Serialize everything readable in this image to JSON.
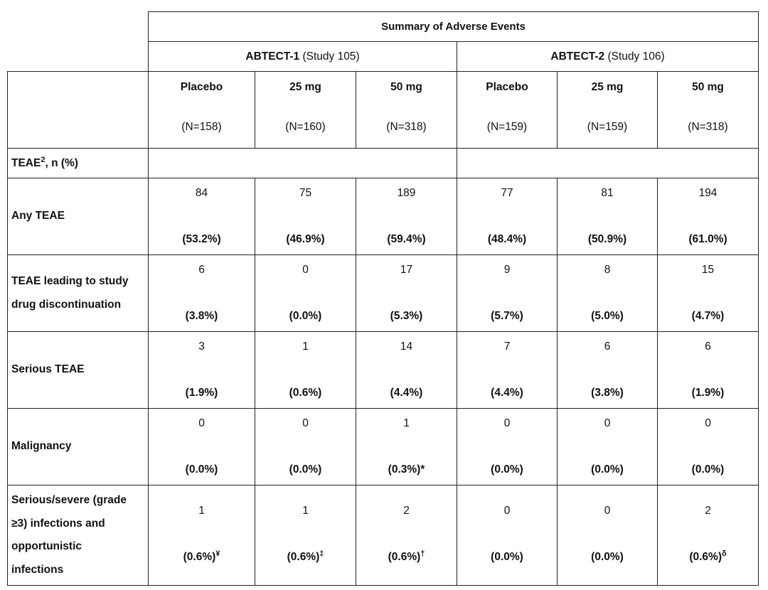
{
  "table": {
    "title": "Summary of Adverse Events",
    "studies": [
      {
        "name": "ABTECT-1",
        "sub": "(Study 105)"
      },
      {
        "name": "ABTECT-2",
        "sub": "(Study 106)"
      }
    ],
    "arms": [
      {
        "label": "Placebo",
        "n": "(N=158)"
      },
      {
        "label": "25 mg",
        "n": "(N=160)"
      },
      {
        "label": "50 mg",
        "n": "(N=318)"
      },
      {
        "label": "Placebo",
        "n": "(N=159)"
      },
      {
        "label": "25 mg",
        "n": "(N=159)"
      },
      {
        "label": "50 mg",
        "n": "(N=318)"
      }
    ],
    "section": {
      "label": "TEAE",
      "sup": "2",
      "suffix": ", n (%)"
    },
    "rows": [
      {
        "label": [
          "Any TEAE"
        ],
        "cells": [
          {
            "n": "84",
            "p": "(53.2%)"
          },
          {
            "n": "75",
            "p": "(46.9%)"
          },
          {
            "n": "189",
            "p": "(59.4%)"
          },
          {
            "n": "77",
            "p": "(48.4%)"
          },
          {
            "n": "81",
            "p": "(50.9%)"
          },
          {
            "n": "194",
            "p": "(61.0%)"
          }
        ]
      },
      {
        "label": [
          "TEAE leading to study",
          "drug discontinuation"
        ],
        "cells": [
          {
            "n": "6",
            "p": "(3.8%)"
          },
          {
            "n": "0",
            "p": "(0.0%)"
          },
          {
            "n": "17",
            "p": "(5.3%)"
          },
          {
            "n": "9",
            "p": "(5.7%)"
          },
          {
            "n": "8",
            "p": "(5.0%)"
          },
          {
            "n": "15",
            "p": "(4.7%)"
          }
        ]
      },
      {
        "label": [
          "Serious TEAE"
        ],
        "cells": [
          {
            "n": "3",
            "p": "(1.9%)"
          },
          {
            "n": "1",
            "p": "(0.6%)"
          },
          {
            "n": "14",
            "p": "(4.4%)"
          },
          {
            "n": "7",
            "p": "(4.4%)"
          },
          {
            "n": "6",
            "p": "(3.8%)"
          },
          {
            "n": "6",
            "p": "(1.9%)"
          }
        ]
      },
      {
        "label": [
          "Malignancy"
        ],
        "cells": [
          {
            "n": "0",
            "p": "(0.0%)"
          },
          {
            "n": "0",
            "p": "(0.0%)"
          },
          {
            "n": "1",
            "p": "(0.3%)*"
          },
          {
            "n": "0",
            "p": "(0.0%)"
          },
          {
            "n": "0",
            "p": "(0.0%)"
          },
          {
            "n": "0",
            "p": "(0.0%)"
          }
        ]
      },
      {
        "label": [
          "Serious/severe (grade",
          "≥3) infections and",
          "opportunistic",
          "infections"
        ],
        "cells": [
          {
            "n": "1",
            "p": "(0.6%)",
            "sup": "¥"
          },
          {
            "n": "1",
            "p": "(0.6%)",
            "sup": "‡"
          },
          {
            "n": "2",
            "p": "(0.6%)",
            "sup": "†"
          },
          {
            "n": "0",
            "p": "(0.0%)"
          },
          {
            "n": "0",
            "p": "(0.0%)"
          },
          {
            "n": "2",
            "p": "(0.6%)",
            "sup": "δ"
          }
        ]
      }
    ]
  }
}
